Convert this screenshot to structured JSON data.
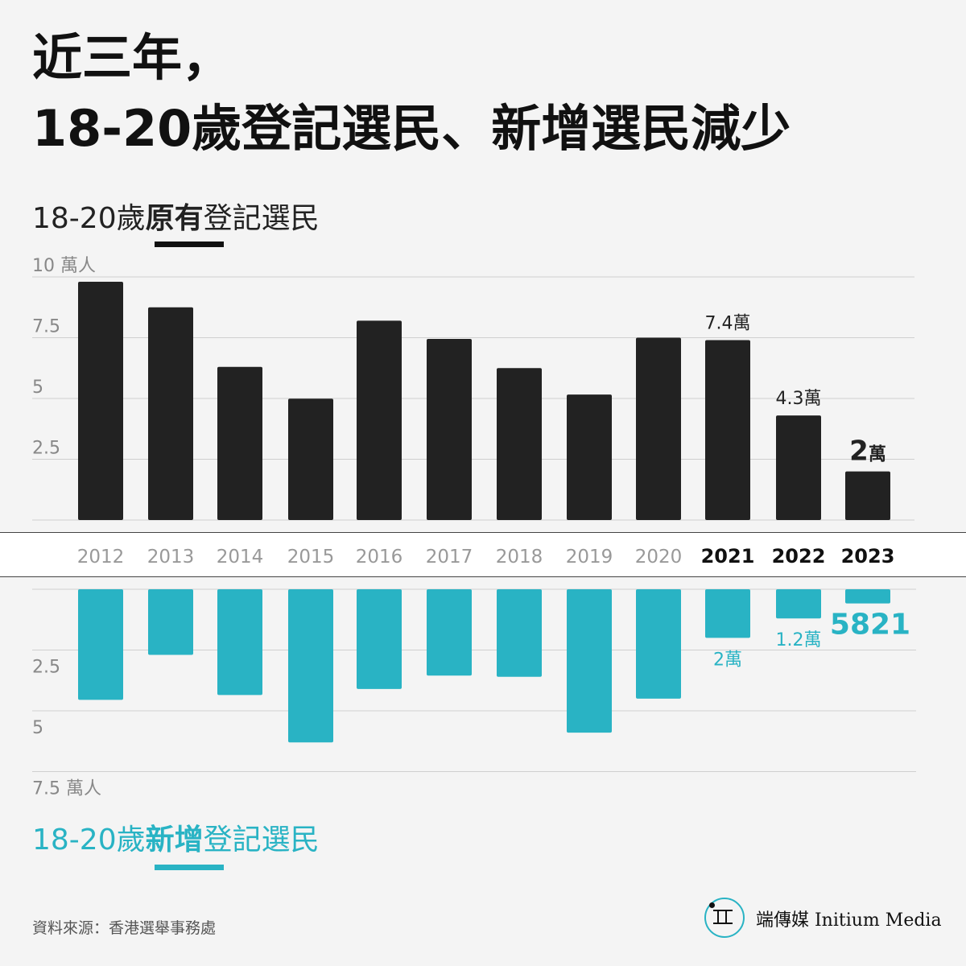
{
  "title": {
    "line1": "近三年，",
    "line2": "18-20歲登記選民、新增選民減少"
  },
  "top_chart": {
    "subtitle_pre": "18-20歲",
    "subtitle_bold": "原有",
    "subtitle_post": "登記選民"
  },
  "bottom_chart": {
    "subtitle_pre": "18-20歲",
    "subtitle_bold": "新增",
    "subtitle_post": "登記選民"
  },
  "source": "資料來源：香港選舉事務處",
  "logo": {
    "icon": "initium-logo-icon",
    "text": "端傳媒 Initium Media",
    "accent": "#29b3c4"
  },
  "colors": {
    "existing": "#222222",
    "new": "#29b3c4",
    "background": "#f4f4f4",
    "axis_text": "#888888"
  },
  "chart_data": [
    {
      "type": "bar",
      "title": "18-20歲原有登記選民",
      "categories": [
        "2012",
        "2013",
        "2014",
        "2015",
        "2016",
        "2017",
        "2018",
        "2019",
        "2020",
        "2021",
        "2022",
        "2023"
      ],
      "values": [
        9.8,
        8.75,
        6.3,
        4.99,
        8.2,
        7.45,
        6.25,
        5.16,
        7.5,
        7.4,
        4.3,
        2.0
      ],
      "unit": "萬人",
      "ylim": [
        0,
        10
      ],
      "yticks": [
        {
          "value": 2.5,
          "label": "2.5"
        },
        {
          "value": 5,
          "label": "5"
        },
        {
          "value": 7.5,
          "label": "7.5"
        },
        {
          "value": 10,
          "label": "10  萬人"
        }
      ],
      "data_labels": [
        {
          "category": "2021",
          "text": "7.4萬"
        },
        {
          "category": "2022",
          "text": "4.3萬"
        },
        {
          "category": "2023",
          "text_num": "2",
          "text_unit": "萬"
        }
      ],
      "highlight_categories": [
        "2021",
        "2022",
        "2023"
      ],
      "grid": true,
      "color": "#222222"
    },
    {
      "type": "bar",
      "title": "18-20歲新增登記選民",
      "direction": "downward",
      "categories": [
        "2012",
        "2013",
        "2014",
        "2015",
        "2016",
        "2017",
        "2018",
        "2019",
        "2020",
        "2021",
        "2022",
        "2023"
      ],
      "values": [
        4.55,
        2.7,
        4.35,
        6.3,
        4.1,
        3.55,
        3.6,
        5.9,
        4.5,
        2.0,
        1.2,
        0.5821
      ],
      "unit": "萬人",
      "ylim": [
        0,
        7.5
      ],
      "yticks": [
        {
          "value": 2.5,
          "label": "2.5"
        },
        {
          "value": 5,
          "label": "5"
        },
        {
          "value": 7.5,
          "label": "7.5 萬人"
        }
      ],
      "data_labels": [
        {
          "category": "2021",
          "text": "2萬"
        },
        {
          "category": "2022",
          "text": "1.2萬"
        },
        {
          "category": "2023",
          "text": "5821"
        }
      ],
      "grid": true,
      "color": "#29b3c4"
    }
  ]
}
